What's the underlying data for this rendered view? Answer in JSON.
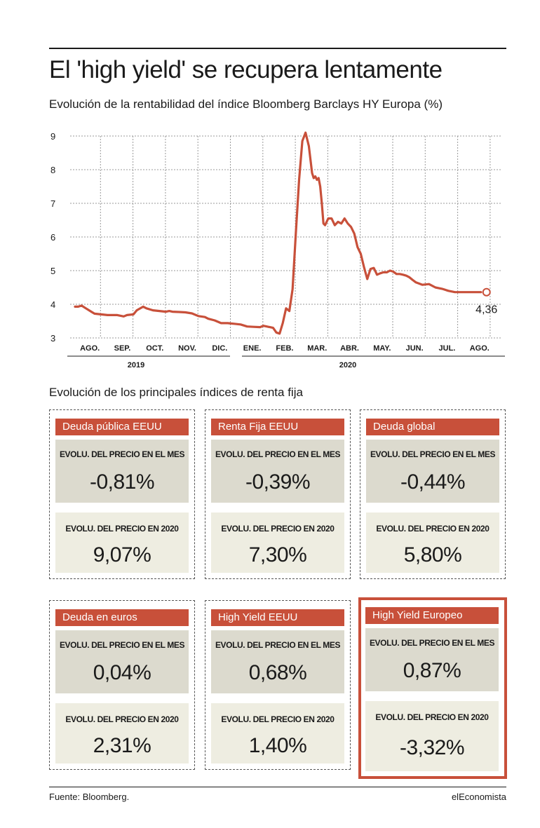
{
  "title": "El 'high yield' se recupera lentamente",
  "subtitle": "Evolución de la rentabilidad del índice Bloomberg Barclays HY Europa (%)",
  "chart_data": {
    "type": "line",
    "ylim": [
      3,
      9
    ],
    "yticks": [
      "3",
      "4",
      "5",
      "6",
      "7",
      "8",
      "9"
    ],
    "months": [
      "AGO.",
      "SEP.",
      "OCT.",
      "NOV.",
      "DIC.",
      "ENE.",
      "FEB.",
      "MAR.",
      "ABR.",
      "MAY.",
      "JUN.",
      "JUL.",
      "AGO."
    ],
    "years": [
      "2019",
      "2020"
    ],
    "grid": true,
    "line_color": "#c8503a",
    "last_label": "4,36",
    "series": [
      {
        "x": [
          0,
          0.1,
          0.2,
          0.3,
          0.5,
          0.6,
          0.8,
          1.0,
          1.3,
          1.5,
          1.6,
          1.8,
          1.9,
          2.1,
          2.2,
          2.4,
          2.6,
          2.8,
          2.9,
          3.0,
          3.2,
          3.4,
          3.6,
          3.8,
          4.0,
          4.1,
          4.3,
          4.5,
          4.7,
          4.8,
          4.9,
          5.1,
          5.3,
          5.5,
          5.7,
          5.8,
          6.0,
          6.1,
          6.2,
          6.3,
          6.4,
          6.5,
          6.6,
          6.7,
          6.8,
          6.9,
          7.0,
          7.1,
          7.2,
          7.3,
          7.35,
          7.4,
          7.45,
          7.5,
          7.55,
          7.6,
          7.65,
          7.7,
          7.8,
          7.9,
          8.0,
          8.1,
          8.2,
          8.3,
          8.4,
          8.5,
          8.6,
          8.7,
          8.8,
          8.9,
          9.0,
          9.1,
          9.2,
          9.3,
          9.4,
          9.5,
          9.6,
          9.7,
          9.8,
          9.9,
          10.0,
          10.1,
          10.2,
          10.3,
          10.4,
          10.5,
          10.7,
          10.9,
          11.1,
          11.3,
          11.5,
          11.7,
          11.9,
          12.1,
          12.3,
          12.5
        ],
        "y": [
          3.93,
          3.93,
          3.96,
          3.9,
          3.78,
          3.72,
          3.7,
          3.68,
          3.68,
          3.64,
          3.68,
          3.7,
          3.82,
          3.93,
          3.88,
          3.82,
          3.8,
          3.78,
          3.8,
          3.78,
          3.77,
          3.76,
          3.73,
          3.65,
          3.62,
          3.57,
          3.52,
          3.44,
          3.44,
          3.43,
          3.42,
          3.4,
          3.34,
          3.33,
          3.32,
          3.36,
          3.32,
          3.3,
          3.16,
          3.13,
          3.45,
          3.88,
          3.8,
          4.45,
          6.1,
          7.7,
          8.85,
          9.1,
          8.7,
          7.9,
          7.75,
          7.8,
          7.7,
          7.75,
          7.5,
          7.0,
          6.4,
          6.35,
          6.55,
          6.55,
          6.35,
          6.45,
          6.4,
          6.55,
          6.4,
          6.3,
          6.1,
          5.7,
          5.5,
          5.1,
          4.75,
          5.05,
          5.08,
          4.88,
          4.92,
          4.95,
          4.95,
          5.0,
          4.97,
          4.9,
          4.9,
          4.88,
          4.85,
          4.8,
          4.72,
          4.65,
          4.58,
          4.6,
          4.5,
          4.46,
          4.4,
          4.36,
          4.36,
          4.36,
          4.36,
          4.36
        ]
      }
    ]
  },
  "section_title": "Evolución de los principales índices de renta fija",
  "cards": [
    {
      "name": "Deuda pública EEUU",
      "mes_label": "EVOLU. DEL PRECIO EN EL MES",
      "mes_value": "-0,81%",
      "y2020_label": "EVOLU. DEL PRECIO EN 2020",
      "y2020_value": "9,07%"
    },
    {
      "name": "Renta Fija EEUU",
      "mes_label": "EVOLU. DEL PRECIO EN EL MES",
      "mes_value": "-0,39%",
      "y2020_label": "EVOLU. DEL PRECIO EN 2020",
      "y2020_value": "7,30%"
    },
    {
      "name": "Deuda global",
      "mes_label": "EVOLU. DEL PRECIO EN EL MES",
      "mes_value": "-0,44%",
      "y2020_label": "EVOLU. DEL PRECIO EN 2020",
      "y2020_value": "5,80%"
    },
    {
      "name": "Deuda en euros",
      "mes_label": "EVOLU. DEL PRECIO EN EL MES",
      "mes_value": "0,04%",
      "y2020_label": "EVOLU. DEL PRECIO EN 2020",
      "y2020_value": "2,31%"
    },
    {
      "name": "High Yield EEUU",
      "mes_label": "EVOLU. DEL PRECIO EN EL MES",
      "mes_value": "0,68%",
      "y2020_label": "EVOLU. DEL PRECIO EN 2020",
      "y2020_value": "1,40%"
    },
    {
      "name": "High Yield Europeo",
      "mes_label": "EVOLU. DEL PRECIO EN EL MES",
      "mes_value": "0,87%",
      "y2020_label": "EVOLU. DEL PRECIO EN 2020",
      "y2020_value": "-3,32%"
    }
  ],
  "footer": {
    "source": "Fuente: Bloomberg.",
    "brand": "elEconomista"
  }
}
